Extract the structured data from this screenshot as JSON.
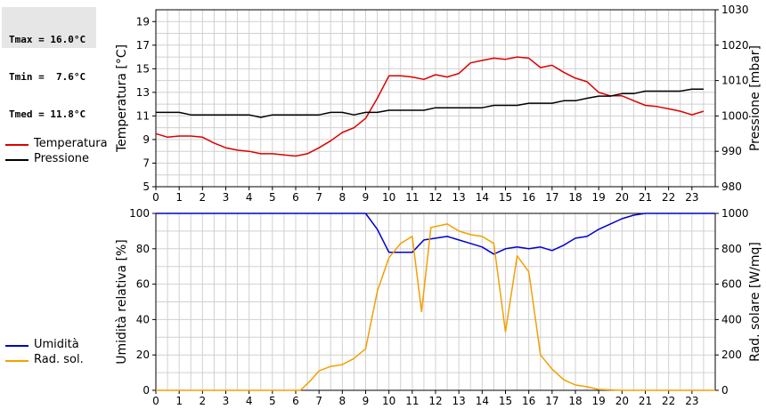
{
  "stats": {
    "tmax": "Tmax = 16.0°C",
    "tmin": "Tmin =  7.6°C",
    "tmed": "Tmed = 11.8°C"
  },
  "colors": {
    "temperatura": "#dd0000",
    "pressione": "#000000",
    "umidita": "#0000cc",
    "rad_sol": "#f2a000",
    "grid": "#d0d0d0"
  },
  "legend_top": [
    {
      "label": "Temperatura",
      "color": "#dd0000"
    },
    {
      "label": "Pressione",
      "color": "#000000"
    }
  ],
  "legend_bottom": [
    {
      "label": "Umidità",
      "color": "#0000cc"
    },
    {
      "label": "Rad. sol.",
      "color": "#f2a000"
    }
  ],
  "chart_data": [
    {
      "type": "line",
      "ylabel": "Temperatura [°C]",
      "ylabel_right": "Pressione [mbar]",
      "xlim": [
        0,
        24
      ],
      "ylim": [
        5,
        20
      ],
      "ylim_right": [
        980,
        1030
      ],
      "x_ticks": [
        "0",
        "1",
        "2",
        "3",
        "4",
        "5",
        "6",
        "7",
        "8",
        "9",
        "10",
        "11",
        "12",
        "13",
        "14",
        "15",
        "16",
        "17",
        "18",
        "19",
        "20",
        "21",
        "22",
        "23"
      ],
      "y_ticks": [
        "5",
        "7",
        "9",
        "11",
        "13",
        "15",
        "17",
        "19"
      ],
      "y_ticks_right": [
        "980",
        "990",
        "1000",
        "1010",
        "1020",
        "1030"
      ],
      "grid": true,
      "legend": "left",
      "series": [
        {
          "name": "Temperatura",
          "axis": "left",
          "x": [
            0,
            0.5,
            1,
            1.5,
            2,
            2.5,
            3,
            3.5,
            4,
            4.5,
            5,
            5.5,
            6,
            6.5,
            7,
            7.5,
            8,
            8.5,
            9,
            9.5,
            10,
            10.5,
            11,
            11.5,
            12,
            12.5,
            13,
            13.5,
            14,
            14.5,
            15,
            15.5,
            16,
            16.5,
            17,
            17.5,
            18,
            18.5,
            19,
            19.5,
            20,
            20.5,
            21,
            21.5,
            22,
            22.5,
            23,
            23.5
          ],
          "values": [
            9.5,
            9.2,
            9.3,
            9.3,
            9.2,
            8.7,
            8.3,
            8.1,
            8.0,
            7.8,
            7.8,
            7.7,
            7.6,
            7.8,
            8.3,
            8.9,
            9.6,
            10.0,
            10.8,
            12.5,
            14.4,
            14.4,
            14.3,
            14.1,
            14.5,
            14.3,
            14.6,
            15.5,
            15.7,
            15.9,
            15.8,
            16.0,
            15.9,
            15.1,
            15.3,
            14.7,
            14.2,
            13.9,
            13.0,
            12.7,
            12.7,
            12.3,
            11.9,
            11.8,
            11.6,
            11.4,
            11.1,
            11.4
          ]
        },
        {
          "name": "Pressione",
          "axis": "right",
          "x": [
            0,
            0.5,
            1,
            1.5,
            2,
            2.5,
            3,
            3.5,
            4,
            4.5,
            5,
            5.5,
            6,
            6.5,
            7,
            7.5,
            8,
            8.5,
            9,
            9.5,
            10,
            10.5,
            11,
            11.5,
            12,
            12.5,
            13,
            13.5,
            14,
            14.5,
            15,
            15.5,
            16,
            16.5,
            17,
            17.5,
            18,
            18.5,
            19,
            19.5,
            20,
            20.5,
            21,
            21.5,
            22,
            22.5,
            23,
            23.5
          ],
          "values": [
            1001,
            1001,
            1001,
            1000.3,
            1000.3,
            1000.3,
            1000.3,
            1000.3,
            1000.3,
            999.6,
            1000.3,
            1000.3,
            1000.3,
            1000.3,
            1000.3,
            1001,
            1001,
            1000.3,
            1001,
            1001,
            1001.6,
            1001.6,
            1001.6,
            1001.6,
            1002.3,
            1002.3,
            1002.3,
            1002.3,
            1002.3,
            1003,
            1003,
            1003,
            1003.6,
            1003.6,
            1003.6,
            1004.3,
            1004.3,
            1005,
            1005.6,
            1005.6,
            1006.3,
            1006.3,
            1007,
            1007,
            1007,
            1007,
            1007.6,
            1007.6
          ]
        }
      ]
    },
    {
      "type": "line",
      "ylabel": "Umidità relativa [%]",
      "ylabel_right": "Rad. solare [W/mq]",
      "xlim": [
        0,
        24
      ],
      "ylim": [
        0,
        100
      ],
      "ylim_right": [
        0,
        1000
      ],
      "x_ticks": [
        "0",
        "1",
        "2",
        "3",
        "4",
        "5",
        "6",
        "7",
        "8",
        "9",
        "10",
        "11",
        "12",
        "13",
        "14",
        "15",
        "16",
        "17",
        "18",
        "19",
        "20",
        "21",
        "22",
        "23"
      ],
      "y_ticks": [
        "0",
        "20",
        "40",
        "60",
        "80",
        "100"
      ],
      "y_ticks_right": [
        "0",
        "200",
        "400",
        "600",
        "800",
        "1000"
      ],
      "grid": true,
      "legend": "left",
      "series": [
        {
          "name": "Umidità",
          "axis": "left",
          "x": [
            0,
            1,
            2,
            3,
            4,
            5,
            6,
            7,
            8,
            9,
            9.5,
            10,
            10.5,
            11,
            11.5,
            12,
            12.5,
            13,
            13.5,
            14,
            14.5,
            15,
            15.5,
            16,
            16.5,
            17,
            17.5,
            18,
            18.5,
            19,
            19.5,
            20,
            20.5,
            21,
            22,
            23,
            24
          ],
          "values": [
            100,
            100,
            100,
            100,
            100,
            100,
            100,
            100,
            100,
            100,
            91,
            78,
            78,
            78,
            85,
            86,
            87,
            85,
            83,
            81,
            77,
            80,
            81,
            80,
            81,
            79,
            82,
            86,
            87,
            91,
            94,
            97,
            99,
            100,
            100,
            100,
            100
          ]
        },
        {
          "name": "Rad. sol.",
          "axis": "right",
          "x": [
            0,
            1,
            2,
            3,
            4,
            5,
            6,
            6.2,
            6.6,
            7,
            7.5,
            8,
            8.5,
            9,
            9.5,
            10,
            10.5,
            11,
            11.4,
            11.8,
            12.5,
            13,
            13.5,
            14,
            14.5,
            15,
            15.5,
            16,
            16.5,
            17,
            17.5,
            18,
            18.5,
            19,
            20,
            21,
            22,
            23,
            24
          ],
          "values": [
            0,
            0,
            0,
            0,
            0,
            0,
            0,
            0,
            50,
            110,
            135,
            145,
            180,
            235,
            560,
            750,
            830,
            870,
            445,
            920,
            940,
            900,
            880,
            870,
            830,
            330,
            760,
            670,
            200,
            120,
            60,
            30,
            20,
            5,
            0,
            0,
            0,
            0,
            0
          ]
        }
      ]
    }
  ]
}
